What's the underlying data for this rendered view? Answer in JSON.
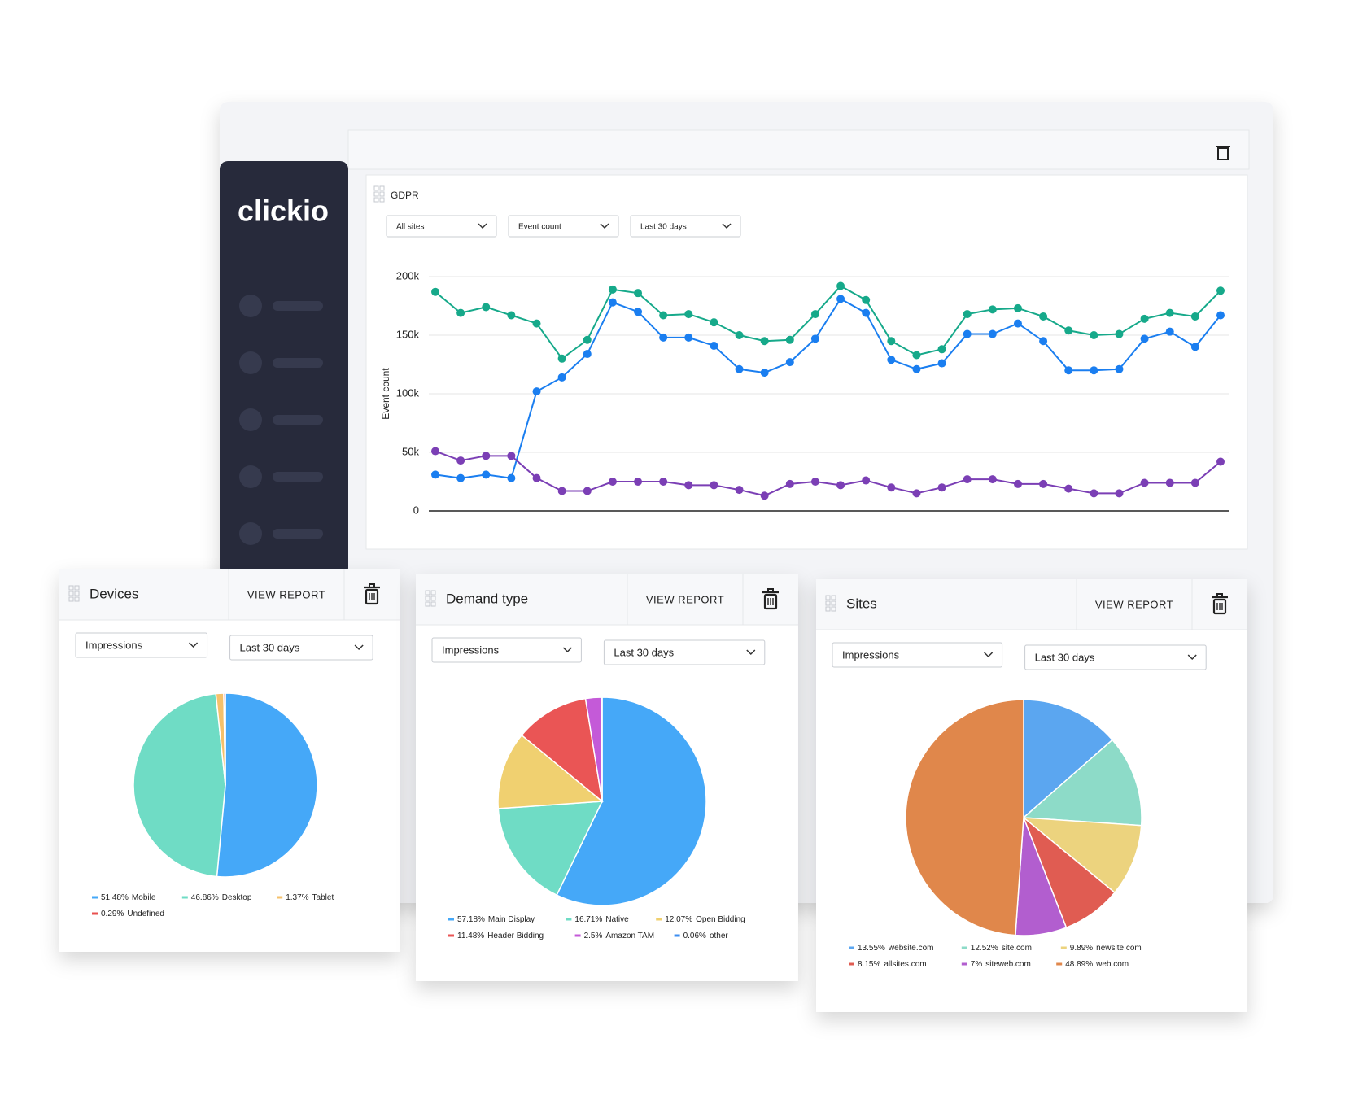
{
  "brand": "clickio",
  "chart_data": [
    {
      "type": "line",
      "title": "GDPR",
      "filters": [
        "All sites",
        "Event count",
        "Last 30 days"
      ],
      "ylabel": "Event count",
      "ylim": [
        0,
        200000
      ],
      "yticks": [
        0,
        {
          "value": 50000,
          "label": "50k"
        },
        {
          "value": 100000,
          "label": "100k"
        },
        {
          "value": 150000,
          "label": "150k"
        },
        {
          "value": 200000,
          "label": "200k"
        }
      ],
      "grid": true,
      "series": [
        {
          "color": "#16a98a",
          "values": [
            187000,
            169000,
            174000,
            167000,
            160000,
            130000,
            146000,
            189000,
            186000,
            167000,
            168000,
            161000,
            150000,
            145000,
            146000,
            168000,
            192000,
            180000,
            145000,
            133000,
            138000,
            168000,
            172000,
            173000,
            166000,
            154000,
            150000,
            151000,
            164000,
            169000,
            166000,
            188000
          ]
        },
        {
          "color": "#1a7ef0",
          "values": [
            31000,
            28000,
            31000,
            28000,
            102000,
            114000,
            134000,
            178000,
            170000,
            148000,
            148000,
            141000,
            121000,
            118000,
            127000,
            147000,
            181000,
            169000,
            129000,
            121000,
            126000,
            151000,
            151000,
            160000,
            145000,
            120000,
            120000,
            121000,
            147000,
            153000,
            140000,
            167000
          ]
        },
        {
          "color": "#7b3fb5",
          "values": [
            51000,
            43000,
            47000,
            47000,
            28000,
            17000,
            17000,
            25000,
            25000,
            25000,
            22000,
            22000,
            18000,
            13000,
            23000,
            25000,
            22000,
            26000,
            20000,
            15000,
            20000,
            27000,
            27000,
            23000,
            23000,
            19000,
            15000,
            15000,
            24000,
            24000,
            24000,
            42000
          ]
        }
      ]
    },
    {
      "type": "pie",
      "title": "Devices",
      "action": "VIEW REPORT",
      "filters": [
        "Impressions",
        "Last 30 days"
      ],
      "categories": [
        "Mobile",
        "Desktop",
        "Tablet",
        "Undefined"
      ],
      "values": [
        51.48,
        46.86,
        1.37,
        0.29
      ],
      "value_labels": [
        "51.48%",
        "46.86%",
        "1.37%",
        "0.29%"
      ],
      "colors": [
        "#45a8f8",
        "#6fdcc5",
        "#f5c16b",
        "#e8504f"
      ]
    },
    {
      "type": "pie",
      "title": "Demand type",
      "action": "VIEW REPORT",
      "filters": [
        "Impressions",
        "Last 30 days"
      ],
      "categories": [
        "Main Display",
        "Native",
        "Open Bidding",
        "Header Bidding",
        "Amazon TAM",
        "other"
      ],
      "values": [
        57.18,
        16.71,
        12.07,
        11.48,
        2.5,
        0.06
      ],
      "value_labels": [
        "57.18%",
        "16.71%",
        "12.07%",
        "11.48%",
        "2.5%",
        "0.06%"
      ],
      "colors": [
        "#45a8f8",
        "#6fdcc5",
        "#f0d070",
        "#ea5555",
        "#c45ad8",
        "#3d8ef0"
      ]
    },
    {
      "type": "pie",
      "title": "Sites",
      "action": "VIEW REPORT",
      "filters": [
        "Impressions",
        "Last 30 days"
      ],
      "categories": [
        "website.com",
        "site.com",
        "newsite.com",
        "allsites.com",
        "siteweb.com",
        "web.com"
      ],
      "values": [
        13.55,
        12.52,
        9.89,
        8.15,
        7,
        48.89
      ],
      "value_labels": [
        "13.55%",
        "12.52%",
        "9.89%",
        "8.15%",
        "7%",
        "48.89%"
      ],
      "colors": [
        "#5ba6f0",
        "#8ddbc8",
        "#ecd37e",
        "#e05c52",
        "#b25ecf",
        "#e0874b"
      ]
    }
  ]
}
